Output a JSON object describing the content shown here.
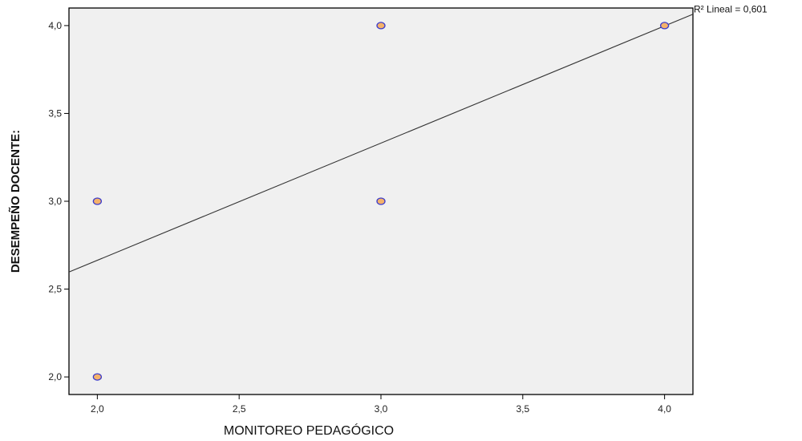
{
  "chart_data": {
    "type": "scatter",
    "title": "",
    "xlabel": "MONITOREO PEDAGÓGICO",
    "ylabel": "DESEMPEÑO DOCENTE:",
    "xlim": [
      1.9,
      4.1
    ],
    "ylim": [
      1.9,
      4.1
    ],
    "x_ticks": [
      2.0,
      2.5,
      3.0,
      3.5,
      4.0
    ],
    "x_tick_labels": [
      "2,0",
      "2,5",
      "3,0",
      "3,5",
      "4,0"
    ],
    "y_ticks": [
      2.0,
      2.5,
      3.0,
      3.5,
      4.0
    ],
    "y_tick_labels": [
      "2,0",
      "2,5",
      "3,0",
      "3,5",
      "4,0"
    ],
    "grid": false,
    "points": [
      {
        "x": 2.0,
        "y": 3.0
      },
      {
        "x": 2.0,
        "y": 2.0
      },
      {
        "x": 3.0,
        "y": 4.0
      },
      {
        "x": 3.0,
        "y": 3.0
      },
      {
        "x": 4.0,
        "y": 4.0
      }
    ],
    "fit_line": {
      "type": "linear",
      "label": "R² Lineal = 0,601",
      "intercept": 1.33,
      "slope": 0.667
    },
    "colors": {
      "plot_background": "#f0f0f0",
      "marker_fill": "#f4b26b",
      "marker_edge": "#3b3bcc",
      "fit_line": "#333333",
      "axis": "#000000"
    }
  }
}
